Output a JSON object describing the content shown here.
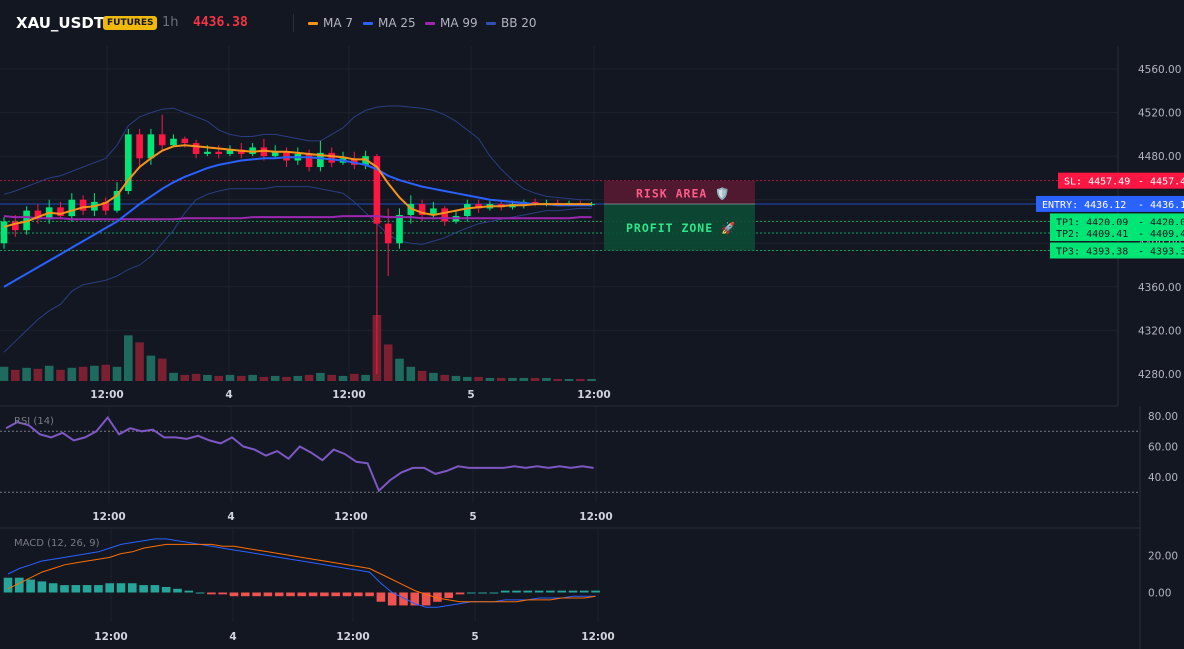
{
  "header": {
    "symbol": "XAU_USDT",
    "badge": "FUTURES",
    "timeframe": "1h",
    "price": "4436.38",
    "legend": [
      {
        "label": "MA 7",
        "color": "#f7931a"
      },
      {
        "label": "MA 25",
        "color": "#2962ff"
      },
      {
        "label": "MA 99",
        "color": "#9c27b0"
      },
      {
        "label": "BB 20",
        "color": "#3151b0"
      }
    ]
  },
  "colors": {
    "up": "#26a69a",
    "up_candle": "#00e676",
    "down": "#ff1744",
    "bg": "#131722"
  },
  "time_axis": [
    "12:00",
    "4",
    "12:00",
    "5",
    "12:00"
  ],
  "chart_data": [
    {
      "type": "candlestick",
      "title": "",
      "y_ticks": [
        "4560.00",
        "4520.00",
        "4480.00",
        "4400.00",
        "4360.00",
        "4320.00",
        "4280.00"
      ],
      "ylim": [
        4280,
        4580
      ],
      "candles": [
        [
          4400,
          4420,
          4395,
          4424
        ],
        [
          4420,
          4412,
          4406,
          4426
        ],
        [
          4412,
          4430,
          4408,
          4434
        ],
        [
          4430,
          4422,
          4418,
          4436
        ],
        [
          4422,
          4433,
          4418,
          4440
        ],
        [
          4433,
          4425,
          4422,
          4438
        ],
        [
          4425,
          4440,
          4420,
          4446
        ],
        [
          4440,
          4430,
          4426,
          4444
        ],
        [
          4430,
          4438,
          4425,
          4446
        ],
        [
          4438,
          4430,
          4426,
          4442
        ],
        [
          4430,
          4448,
          4428,
          4456
        ],
        [
          4448,
          4500,
          4445,
          4505
        ],
        [
          4500,
          4478,
          4470,
          4505
        ],
        [
          4478,
          4500,
          4472,
          4505
        ],
        [
          4500,
          4490,
          4485,
          4518
        ],
        [
          4490,
          4496,
          4488,
          4500
        ],
        [
          4496,
          4492,
          4488,
          4498
        ],
        [
          4492,
          4482,
          4478,
          4495
        ],
        [
          4482,
          4484,
          4480,
          4490
        ],
        [
          4484,
          4482,
          4478,
          4490
        ],
        [
          4482,
          4486,
          4480,
          4490
        ],
        [
          4486,
          4482,
          4478,
          4492
        ],
        [
          4482,
          4488,
          4480,
          4492
        ],
        [
          4488,
          4480,
          4476,
          4496
        ],
        [
          4480,
          4484,
          4478,
          4490
        ],
        [
          4484,
          4476,
          4470,
          4488
        ],
        [
          4476,
          4482,
          4472,
          4488
        ],
        [
          4482,
          4470,
          4466,
          4486
        ],
        [
          4470,
          4483,
          4466,
          4494
        ],
        [
          4483,
          4474,
          4470,
          4488
        ],
        [
          4474,
          4478,
          4472,
          4484
        ],
        [
          4478,
          4472,
          4468,
          4484
        ],
        [
          4472,
          4480,
          4468,
          4485
        ],
        [
          4480,
          4418,
          4280,
          4482
        ],
        [
          4418,
          4400,
          4370,
          4432
        ],
        [
          4400,
          4426,
          4395,
          4432
        ],
        [
          4426,
          4436,
          4418,
          4444
        ],
        [
          4436,
          4426,
          4420,
          4440
        ],
        [
          4426,
          4432,
          4422,
          4438
        ],
        [
          4432,
          4420,
          4416,
          4434
        ],
        [
          4420,
          4425,
          4418,
          4430
        ],
        [
          4425,
          4436,
          4420,
          4440
        ],
        [
          4436,
          4432,
          4428,
          4440
        ],
        [
          4432,
          4436,
          4430,
          4439
        ],
        [
          4436,
          4433,
          4430,
          4438
        ],
        [
          4433,
          4436,
          4431,
          4439
        ],
        [
          4436,
          4438,
          4432,
          4440
        ],
        [
          4438,
          4436,
          4434,
          4441
        ],
        [
          4436,
          4437,
          4434,
          4440
        ],
        [
          4437,
          4436,
          4434,
          4440
        ],
        [
          4436,
          4437,
          4434,
          4439
        ],
        [
          4437,
          4436,
          4434,
          4439
        ],
        [
          4436,
          4436,
          4434,
          4438
        ]
      ],
      "volume": [
        14,
        11,
        13,
        12,
        15,
        11,
        13,
        14,
        15,
        16,
        14,
        45,
        38,
        25,
        22,
        8,
        6,
        7,
        6,
        5,
        6,
        5,
        6,
        4,
        5,
        4,
        5,
        6,
        8,
        6,
        5,
        7,
        6,
        65,
        36,
        22,
        14,
        10,
        8,
        6,
        5,
        4,
        4,
        3,
        3,
        3,
        3,
        3,
        3,
        2,
        2,
        2,
        2
      ],
      "ma7": [
        4415,
        4418,
        4420,
        4424,
        4428,
        4427,
        4430,
        4433,
        4434,
        4437,
        4444,
        4458,
        4470,
        4478,
        4485,
        4489,
        4490,
        4489,
        4488,
        4487,
        4486,
        4485,
        4484,
        4485,
        4484,
        4484,
        4483,
        4482,
        4481,
        4480,
        4479,
        4477,
        4477,
        4470,
        4455,
        4442,
        4432,
        4428,
        4426,
        4428,
        4430,
        4432,
        4433,
        4434,
        4434,
        4435,
        4435,
        4436,
        4436,
        4436,
        4436,
        4436,
        4436
      ],
      "ma25": [
        4360,
        4366,
        4372,
        4378,
        4384,
        4390,
        4396,
        4402,
        4408,
        4414,
        4420,
        4428,
        4436,
        4443,
        4450,
        4456,
        4461,
        4465,
        4469,
        4472,
        4474,
        4476,
        4477,
        4478,
        4478,
        4479,
        4479,
        4479,
        4478,
        4477,
        4476,
        4474,
        4472,
        4468,
        4462,
        4458,
        4455,
        4452,
        4450,
        4448,
        4446,
        4444,
        4442,
        4440,
        4439,
        4438,
        4437,
        4436,
        4436,
        4435,
        4435,
        4435,
        4435
      ],
      "ma99": [
        4425,
        4424,
        4424,
        4423,
        4423,
        4423,
        4422,
        4422,
        4422,
        4422,
        4422,
        4422,
        4422,
        4422,
        4422,
        4422,
        4423,
        4423,
        4423,
        4423,
        4423,
        4423,
        4424,
        4424,
        4424,
        4424,
        4424,
        4424,
        4424,
        4424,
        4425,
        4425,
        4425,
        4425,
        4424,
        4424,
        4424,
        4423,
        4423,
        4423,
        4423,
        4423,
        4423,
        4423,
        4423,
        4423,
        4423,
        4423,
        4423,
        4423,
        4423,
        4424,
        4424
      ],
      "bb_upper": [
        4445,
        4448,
        4452,
        4456,
        4460,
        4462,
        4466,
        4470,
        4474,
        4478,
        4490,
        4508,
        4516,
        4520,
        4523,
        4524,
        4520,
        4516,
        4512,
        4504,
        4500,
        4498,
        4498,
        4500,
        4500,
        4498,
        4496,
        4494,
        4494,
        4500,
        4506,
        4516,
        4522,
        4525,
        4526,
        4526,
        4525,
        4524,
        4522,
        4518,
        4512,
        4504,
        4496,
        4480,
        4468,
        4458,
        4450,
        4446,
        4443,
        4442,
        4441,
        4440,
        4440
      ],
      "bb_lower": [
        4300,
        4310,
        4320,
        4330,
        4338,
        4344,
        4356,
        4362,
        4364,
        4366,
        4370,
        4376,
        4380,
        4388,
        4400,
        4412,
        4428,
        4440,
        4445,
        4448,
        4450,
        4450,
        4450,
        4450,
        4452,
        4452,
        4452,
        4452,
        4450,
        4448,
        4446,
        4438,
        4428,
        4418,
        4408,
        4402,
        4400,
        4399,
        4402,
        4405,
        4410,
        4414,
        4418,
        4420,
        4422,
        4424,
        4426,
        4428,
        4430,
        4430,
        4431,
        4432,
        4432
      ],
      "levels": {
        "sl": {
          "label": "SL: 4457.49",
          "value": 4457.49,
          "price": "4457.49"
        },
        "entry": {
          "label": "ENTRY: 4436.12",
          "value": 4436.12,
          "price": "4436.12"
        },
        "tp1": {
          "label": "TP1: 4420.09",
          "value": 4420.09,
          "price": "4420.09"
        },
        "tp2": {
          "label": "TP2: 4409.41",
          "value": 4409.41,
          "price": "4409.41"
        },
        "tp3": {
          "label": "TP3: 4393.38",
          "value": 4393.38,
          "price": "4393.38"
        }
      },
      "zones": {
        "risk": "RISK AREA 🛡️",
        "profit": "PROFIT ZONE 🚀"
      }
    },
    {
      "type": "line",
      "title": "RSI (14)",
      "y_ticks": [
        "80.00",
        "60.00",
        "40.00"
      ],
      "ylim": [
        25,
        88
      ],
      "overbought": 70,
      "oversold": 30,
      "values": [
        72,
        76,
        74,
        68,
        66,
        69,
        64,
        66,
        70,
        79,
        68,
        72,
        70,
        71,
        66,
        66,
        65,
        67,
        64,
        62,
        66,
        60,
        58,
        54,
        57,
        52,
        60,
        56,
        51,
        58,
        55,
        50,
        49,
        31,
        38,
        43,
        46,
        46,
        42,
        44,
        47,
        46,
        46,
        46,
        46,
        47,
        46,
        47,
        46,
        47,
        46,
        47,
        46
      ]
    },
    {
      "type": "bar",
      "title": "MACD (12, 26, 9)",
      "y_ticks": [
        "20.00",
        "0.00"
      ],
      "ylim": [
        -12,
        34
      ],
      "macd": [
        10,
        13,
        15,
        17,
        18,
        19,
        20,
        21,
        22,
        24,
        26,
        27,
        28,
        29,
        29,
        28,
        27,
        26,
        25,
        24,
        23,
        22,
        21,
        20,
        19,
        18,
        17,
        16,
        15,
        14,
        13,
        12,
        11,
        5,
        0,
        -3,
        -6,
        -8,
        -8,
        -7,
        -6,
        -5,
        -5,
        -5,
        -4,
        -4,
        -4,
        -3,
        -3,
        -3,
        -2,
        -2,
        -2
      ],
      "signal": [
        2,
        5,
        8,
        11,
        13,
        15,
        16,
        17,
        18,
        19,
        21,
        22,
        24,
        25,
        26,
        26,
        26,
        26,
        26,
        25,
        25,
        24,
        23,
        22,
        21,
        20,
        19,
        18,
        17,
        16,
        15,
        14,
        13,
        10,
        7,
        4,
        1,
        -1,
        -3,
        -4,
        -5,
        -5,
        -5,
        -5,
        -5,
        -5,
        -4,
        -4,
        -4,
        -3,
        -3,
        -3,
        -2
      ],
      "hist": [
        8,
        8,
        7,
        6,
        5,
        4,
        4,
        4,
        4,
        5,
        5,
        5,
        4,
        4,
        3,
        2,
        1,
        0,
        -1,
        -1,
        -2,
        -2,
        -2,
        -2,
        -2,
        -2,
        -2,
        -2,
        -2,
        -2,
        -2,
        -2,
        -2,
        -5,
        -7,
        -7,
        -7,
        -7,
        -5,
        -3,
        -1,
        0,
        0,
        0,
        1,
        1,
        1,
        1,
        1,
        1,
        1,
        1,
        1
      ]
    }
  ]
}
